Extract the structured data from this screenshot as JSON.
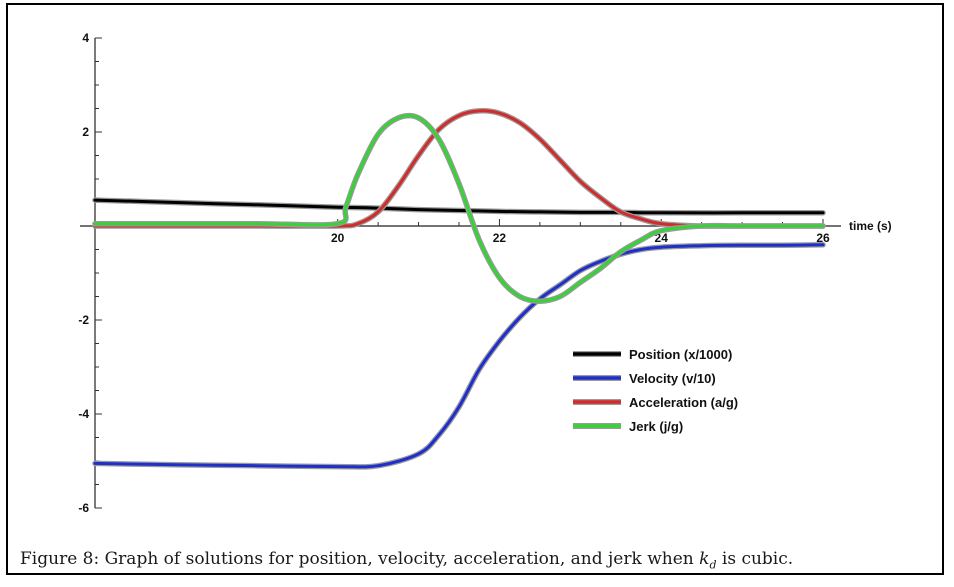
{
  "chart_data": {
    "type": "line",
    "title": "",
    "xlabel": "time (s)",
    "ylabel": "",
    "xlim": [
      17,
      26
    ],
    "ylim": [
      -6,
      4
    ],
    "grid": false,
    "legend_position": "lower-right",
    "x_ticks": [
      {
        "value": 20,
        "label": "20"
      },
      {
        "value": 22,
        "label": "22"
      },
      {
        "value": 24,
        "label": "24"
      },
      {
        "value": 26,
        "label": "26"
      }
    ],
    "y_ticks": [
      {
        "value": 4,
        "label": "4"
      },
      {
        "value": 2,
        "label": "2"
      },
      {
        "value": -2,
        "label": "-2"
      },
      {
        "value": -4,
        "label": "-4"
      },
      {
        "value": -6,
        "label": "-6"
      }
    ],
    "series": [
      {
        "name": "Position (x/1000)",
        "color": "#000000",
        "x": [
          17,
          18,
          19,
          20,
          20.5,
          21,
          21.5,
          22,
          22.5,
          23,
          23.5,
          24,
          25,
          26
        ],
        "y": [
          0.55,
          0.5,
          0.45,
          0.4,
          0.38,
          0.35,
          0.33,
          0.31,
          0.3,
          0.29,
          0.29,
          0.28,
          0.28,
          0.28
        ]
      },
      {
        "name": "Velocity (v/10)",
        "color": "#1f2fcc",
        "x": [
          17,
          18,
          19,
          20,
          20.5,
          21,
          21.25,
          21.5,
          21.75,
          22,
          22.25,
          22.5,
          22.75,
          23,
          23.25,
          23.5,
          23.75,
          24,
          24.5,
          25,
          25.5,
          26
        ],
        "y": [
          -5.05,
          -5.08,
          -5.1,
          -5.12,
          -5.1,
          -4.85,
          -4.45,
          -3.85,
          -3.05,
          -2.45,
          -1.95,
          -1.55,
          -1.25,
          -0.95,
          -0.75,
          -0.6,
          -0.5,
          -0.45,
          -0.42,
          -0.41,
          -0.41,
          -0.4
        ]
      },
      {
        "name": "Acceleration (a/g)",
        "color": "#d42a2a",
        "x": [
          17,
          18,
          19,
          20,
          20.25,
          20.5,
          20.75,
          21,
          21.25,
          21.5,
          21.75,
          22,
          22.25,
          22.5,
          22.75,
          23,
          23.25,
          23.5,
          23.75,
          24,
          24.5,
          25,
          25.5,
          26
        ],
        "y": [
          0,
          0,
          0,
          0,
          0.05,
          0.3,
          0.85,
          1.5,
          2.05,
          2.35,
          2.45,
          2.4,
          2.2,
          1.85,
          1.4,
          0.95,
          0.6,
          0.3,
          0.15,
          0.05,
          0,
          0,
          0,
          0
        ]
      },
      {
        "name": "Jerk (j/g)",
        "color": "#36d336",
        "x": [
          17,
          18,
          19,
          20,
          20.1,
          20.25,
          20.5,
          20.75,
          21,
          21.25,
          21.5,
          21.75,
          22,
          22.25,
          22.5,
          22.75,
          23,
          23.25,
          23.5,
          23.75,
          24,
          24.5,
          25,
          26
        ],
        "y": [
          0.05,
          0.05,
          0.05,
          0.05,
          0.4,
          1.1,
          1.95,
          2.3,
          2.3,
          1.85,
          0.9,
          -0.3,
          -1.1,
          -1.5,
          -1.6,
          -1.5,
          -1.2,
          -0.9,
          -0.55,
          -0.3,
          -0.1,
          0,
          0,
          0
        ]
      }
    ]
  },
  "caption": {
    "prefix": "Figure 8:  Graph of solutions for position, velocity, acceleration, and jerk when ",
    "var": "k",
    "sub": "d",
    "suffix": " is cubic."
  }
}
